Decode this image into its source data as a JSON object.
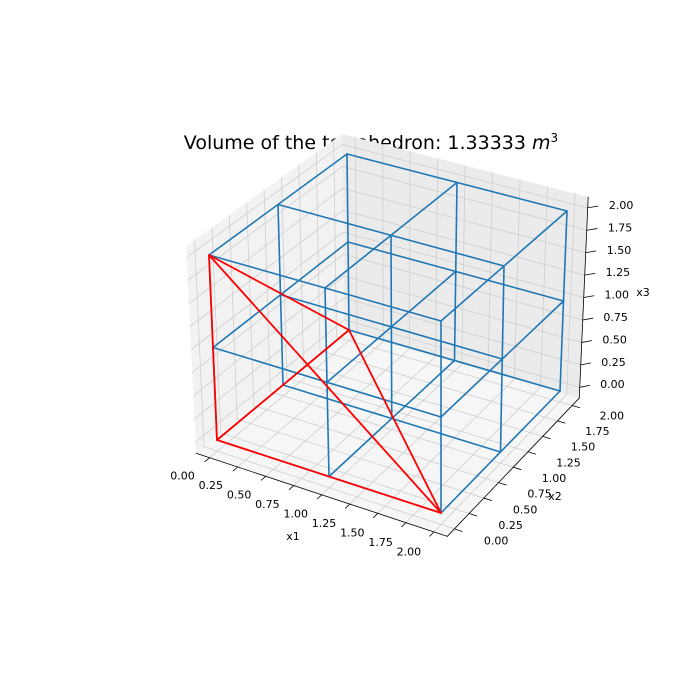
{
  "chart_data": {
    "type": "3d-wireframe",
    "title_text": "Volume of the tetrahedron: 1.33333 ",
    "title_unit": "m",
    "title_exponent": "3",
    "xlabel": "x1",
    "ylabel": "x2",
    "zlabel": "x3",
    "xlim": [
      0,
      2
    ],
    "ylim": [
      0,
      2
    ],
    "zlim": [
      0,
      2
    ],
    "grid": true,
    "x_ticks": [
      "0.00",
      "0.25",
      "0.50",
      "0.75",
      "1.00",
      "1.25",
      "1.50",
      "1.75",
      "2.00"
    ],
    "y_ticks": [
      "0.00",
      "0.25",
      "0.50",
      "0.75",
      "1.00",
      "1.25",
      "1.50",
      "1.75",
      "2.00"
    ],
    "z_ticks": [
      "0.00",
      "0.25",
      "0.50",
      "0.75",
      "1.00",
      "1.25",
      "1.50",
      "1.75",
      "2.00"
    ],
    "cube_grid": {
      "color": "#1f77b4",
      "divisions": [
        0,
        1,
        2
      ],
      "description_free": true
    },
    "tetrahedron": {
      "color": "#ff0000",
      "vertices": [
        [
          0,
          0,
          0
        ],
        [
          2,
          0,
          0
        ],
        [
          0,
          2,
          0
        ],
        [
          0,
          0,
          2
        ]
      ],
      "edges": [
        [
          0,
          1
        ],
        [
          0,
          2
        ],
        [
          0,
          3
        ],
        [
          1,
          2
        ],
        [
          1,
          3
        ],
        [
          2,
          3
        ]
      ]
    }
  }
}
